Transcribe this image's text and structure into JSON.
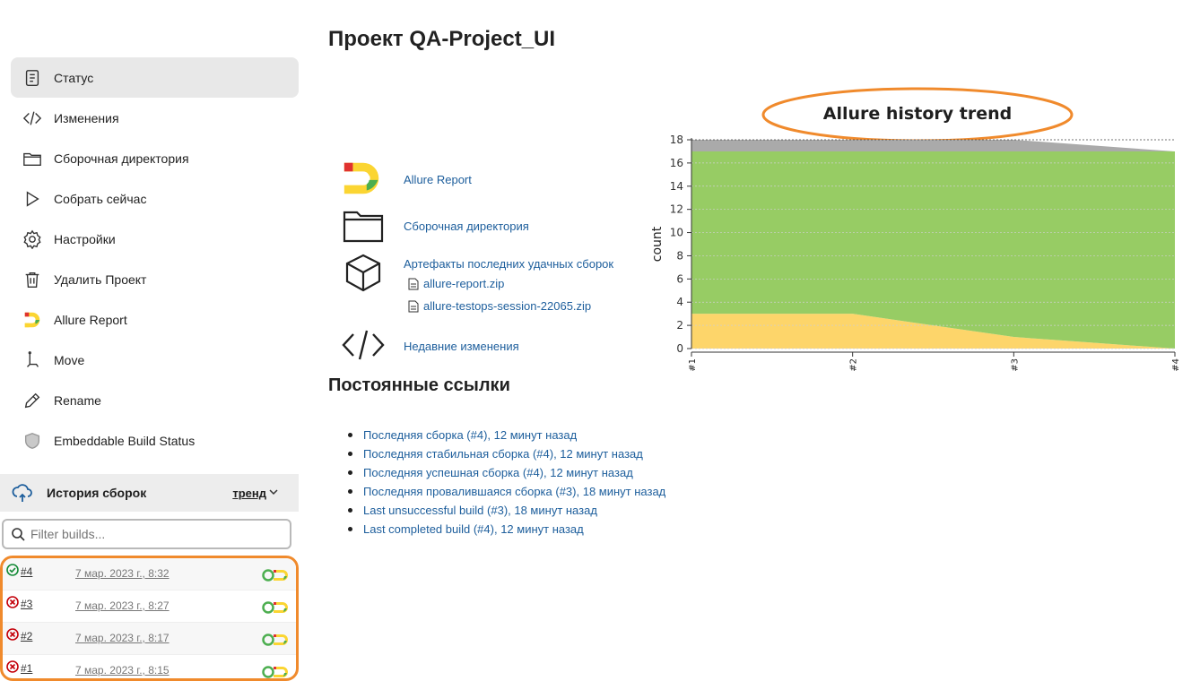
{
  "sidebar": {
    "items": [
      {
        "label": "Статус",
        "icon": "status-icon"
      },
      {
        "label": "Изменения",
        "icon": "code-icon"
      },
      {
        "label": "Сборочная директория",
        "icon": "folder-icon"
      },
      {
        "label": "Собрать сейчас",
        "icon": "play-icon"
      },
      {
        "label": "Настройки",
        "icon": "gear-icon"
      },
      {
        "label": "Удалить Проект",
        "icon": "trash-icon"
      },
      {
        "label": "Allure Report",
        "icon": "allure-icon"
      },
      {
        "label": "Move",
        "icon": "move-icon"
      },
      {
        "label": "Rename",
        "icon": "pencil-icon"
      },
      {
        "label": "Embeddable Build Status",
        "icon": "shield-icon"
      }
    ]
  },
  "history": {
    "title": "История сборок",
    "trend": "тренд",
    "filter_placeholder": "Filter builds...",
    "builds": [
      {
        "num": "#4",
        "date": "7 мар. 2023 г., 8:32",
        "status": "success"
      },
      {
        "num": "#3",
        "date": "7 мар. 2023 г., 8:27",
        "status": "failed"
      },
      {
        "num": "#2",
        "date": "7 мар. 2023 г., 8:17",
        "status": "failed"
      },
      {
        "num": "#1",
        "date": "7 мар. 2023 г., 8:15",
        "status": "failed"
      }
    ]
  },
  "main": {
    "title": "Проект QA-Project_UI",
    "actions": {
      "allure": "Allure Report",
      "workspace": "Сборочная директория",
      "artifacts": "Артефакты последних удачных сборок",
      "artifact_files": [
        "allure-report.zip",
        "allure-testops-session-22065.zip"
      ],
      "changes": "Недавние изменения"
    },
    "permalinks_title": "Постоянные ссылки",
    "permalinks": [
      "Последняя сборка (#4), 12 минут назад",
      "Последняя стабильная сборка (#4), 12 минут назад",
      "Последняя успешная сборка (#4), 12 минут назад",
      "Последняя провалившаяся сборка (#3), 18 минут назад",
      "Last unsuccessful build (#3), 18 минут назад",
      "Last completed build (#4), 12 минут назад"
    ]
  },
  "colors": {
    "accent_orange": "#f08a2c",
    "link": "#1d5e9c",
    "passed": "#97cc64",
    "failed": "#fdd56a",
    "skipped": "#aaaaaa"
  },
  "chart_data": {
    "type": "area",
    "title": "Allure history trend",
    "ylabel": "count",
    "categories": [
      "#1",
      "#2",
      "#3",
      "#4"
    ],
    "ylim": [
      0,
      18
    ],
    "yticks": [
      0,
      2,
      4,
      6,
      8,
      10,
      12,
      14,
      16,
      18
    ],
    "grid": true,
    "series": [
      {
        "key": "failed",
        "values": [
          3,
          3,
          1,
          0
        ],
        "color": "#fdd56a"
      },
      {
        "key": "passed",
        "values": [
          14,
          14,
          16,
          17
        ],
        "color": "#97cc64"
      },
      {
        "key": "skipped",
        "values": [
          1,
          1,
          1,
          0
        ],
        "color": "#aaaaaa"
      }
    ]
  }
}
